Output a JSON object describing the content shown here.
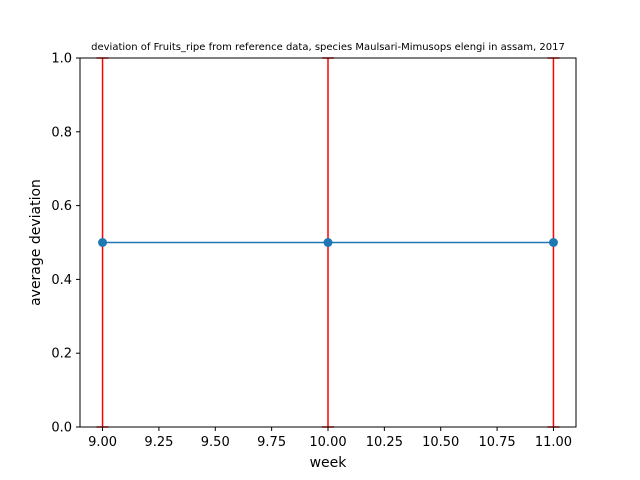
{
  "chart_data": {
    "type": "line",
    "title": "deviation of Fruits_ripe from reference data, species Maulsari-Mimusops elengi in assam, 2017",
    "xlabel": "week",
    "ylabel": "average deviation",
    "xlim": [
      8.9,
      11.1
    ],
    "ylim": [
      0.0,
      1.0
    ],
    "xticks": [
      9.0,
      9.25,
      9.5,
      9.75,
      10.0,
      10.25,
      10.5,
      10.75,
      11.0
    ],
    "xtick_labels": [
      "9.00",
      "9.25",
      "9.50",
      "9.75",
      "10.00",
      "10.25",
      "10.50",
      "10.75",
      "11.00"
    ],
    "yticks": [
      0.0,
      0.2,
      0.4,
      0.6,
      0.8,
      1.0
    ],
    "ytick_labels": [
      "0.0",
      "0.2",
      "0.4",
      "0.6",
      "0.8",
      "1.0"
    ],
    "grid": false,
    "series": [
      {
        "x": [
          9,
          10,
          11
        ],
        "y": [
          0.5,
          0.5,
          0.5
        ],
        "error_low": [
          0.5,
          0.5,
          0.5
        ],
        "error_high": [
          0.5,
          0.5,
          0.5
        ],
        "line_color": "#1f77b4",
        "marker": "circle",
        "error_color": "#ff0000"
      }
    ]
  }
}
